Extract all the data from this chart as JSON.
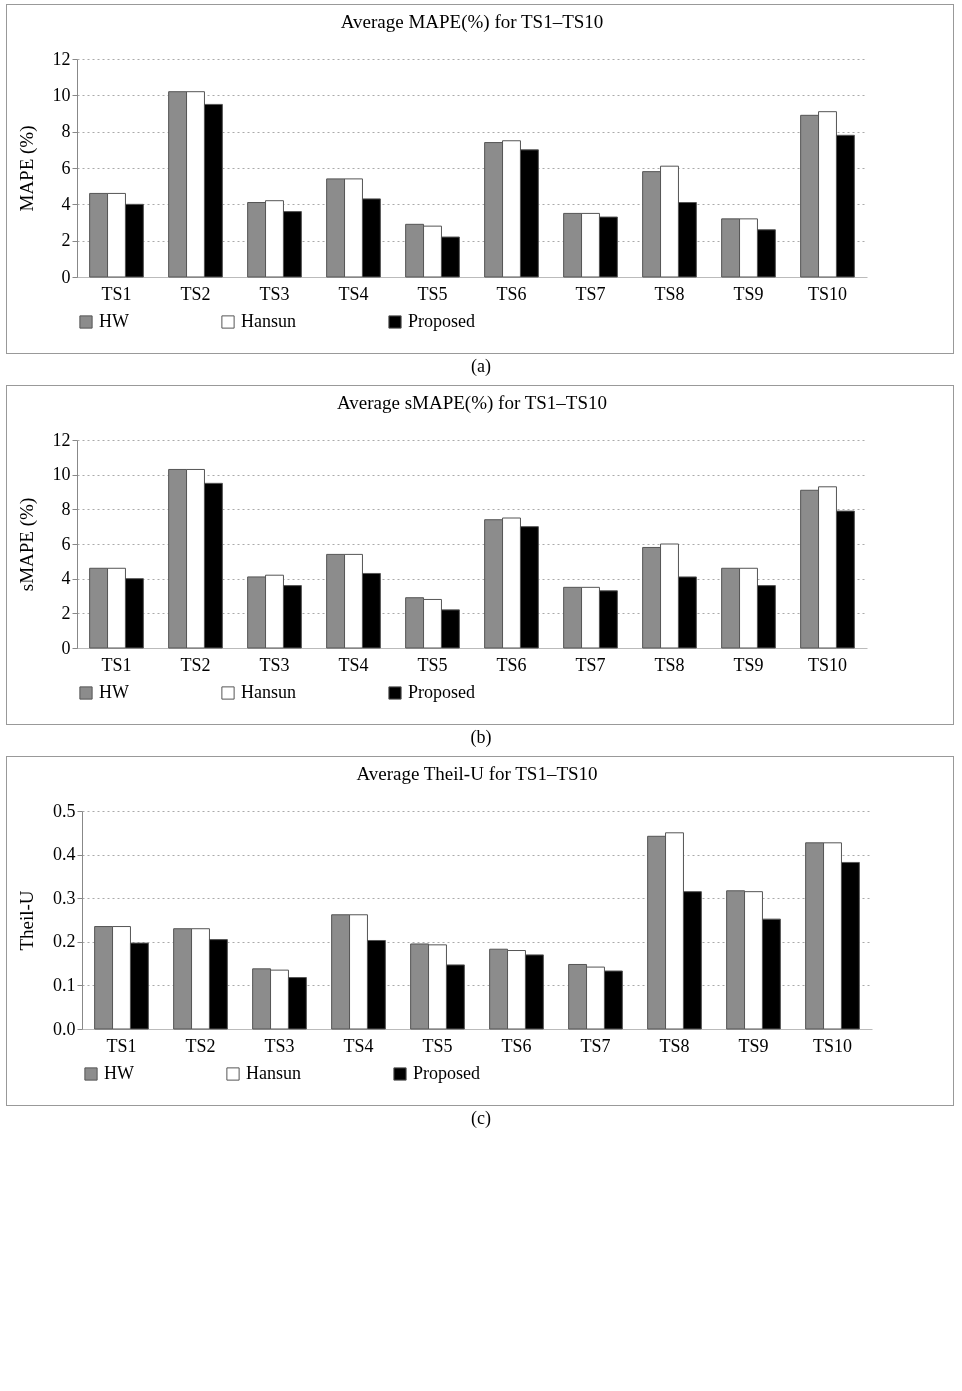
{
  "chart_data": [
    {
      "type": "bar",
      "title": "Average MAPE(%) for TS1–TS10",
      "ylabel": "MAPE (%)",
      "categories": [
        "TS1",
        "TS2",
        "TS3",
        "TS4",
        "TS5",
        "TS6",
        "TS7",
        "TS8",
        "TS9",
        "TS10"
      ],
      "series": [
        {
          "name": "HW",
          "color": "#8c8c8c",
          "values": [
            4.6,
            10.2,
            4.1,
            5.4,
            2.9,
            7.4,
            3.5,
            5.8,
            3.2,
            8.9
          ]
        },
        {
          "name": "Hansun",
          "color": "#ffffff",
          "values": [
            4.6,
            10.2,
            4.2,
            5.4,
            2.8,
            7.5,
            3.5,
            6.1,
            3.2,
            9.1
          ]
        },
        {
          "name": "Proposed",
          "color": "#000000",
          "values": [
            4.0,
            9.5,
            3.6,
            4.3,
            2.2,
            7.0,
            3.3,
            4.1,
            2.6,
            7.8
          ]
        }
      ],
      "ylim": [
        0,
        12
      ],
      "yticks": [
        0,
        2,
        4,
        6,
        8,
        10,
        12
      ],
      "grid": "y",
      "legend": "bottom",
      "annotations": [
        "(a)"
      ]
    },
    {
      "type": "bar",
      "title": "Average sMAPE(%) for TS1–TS10",
      "ylabel": "sMAPE (%)",
      "categories": [
        "TS1",
        "TS2",
        "TS3",
        "TS4",
        "TS5",
        "TS6",
        "TS7",
        "TS8",
        "TS9",
        "TS10"
      ],
      "series": [
        {
          "name": "HW",
          "color": "#8c8c8c",
          "values": [
            4.6,
            10.3,
            4.1,
            5.4,
            2.9,
            7.4,
            3.5,
            5.8,
            4.6,
            9.1
          ]
        },
        {
          "name": "Hansun",
          "color": "#ffffff",
          "values": [
            4.6,
            10.3,
            4.2,
            5.4,
            2.8,
            7.5,
            3.5,
            6.0,
            4.6,
            9.3
          ]
        },
        {
          "name": "Proposed",
          "color": "#000000",
          "values": [
            4.0,
            9.5,
            3.6,
            4.3,
            2.2,
            7.0,
            3.3,
            4.1,
            3.6,
            7.9
          ]
        }
      ],
      "ylim": [
        0,
        12
      ],
      "yticks": [
        0,
        2,
        4,
        6,
        8,
        10,
        12
      ],
      "grid": "y",
      "legend": "bottom",
      "annotations": [
        "(b)"
      ]
    },
    {
      "type": "bar",
      "title": "Average Theil-U for TS1–TS10",
      "ylabel": "Theil-U",
      "categories": [
        "TS1",
        "TS2",
        "TS3",
        "TS4",
        "TS5",
        "TS6",
        "TS7",
        "TS8",
        "TS9",
        "TS10"
      ],
      "series": [
        {
          "name": "HW",
          "color": "#8c8c8c",
          "values": [
            0.235,
            0.23,
            0.138,
            0.262,
            0.195,
            0.183,
            0.148,
            0.442,
            0.317,
            0.427
          ]
        },
        {
          "name": "Hansun",
          "color": "#ffffff",
          "values": [
            0.235,
            0.23,
            0.135,
            0.262,
            0.193,
            0.18,
            0.142,
            0.45,
            0.315,
            0.427
          ]
        },
        {
          "name": "Proposed",
          "color": "#000000",
          "values": [
            0.197,
            0.205,
            0.118,
            0.203,
            0.147,
            0.17,
            0.133,
            0.315,
            0.252,
            0.382
          ]
        }
      ],
      "ylim": [
        0,
        0.5
      ],
      "yticks": [
        {
          "value": 0,
          "label": "0.0"
        },
        {
          "value": 0.1,
          "label": "0.1"
        },
        {
          "value": 0.2,
          "label": "0.2"
        },
        {
          "value": 0.3,
          "label": "0.3"
        },
        {
          "value": 0.4,
          "label": "0.4"
        },
        {
          "value": 0.5,
          "label": "0.5"
        }
      ],
      "grid": "y",
      "legend": "bottom",
      "annotations": [
        "(c)"
      ]
    }
  ]
}
